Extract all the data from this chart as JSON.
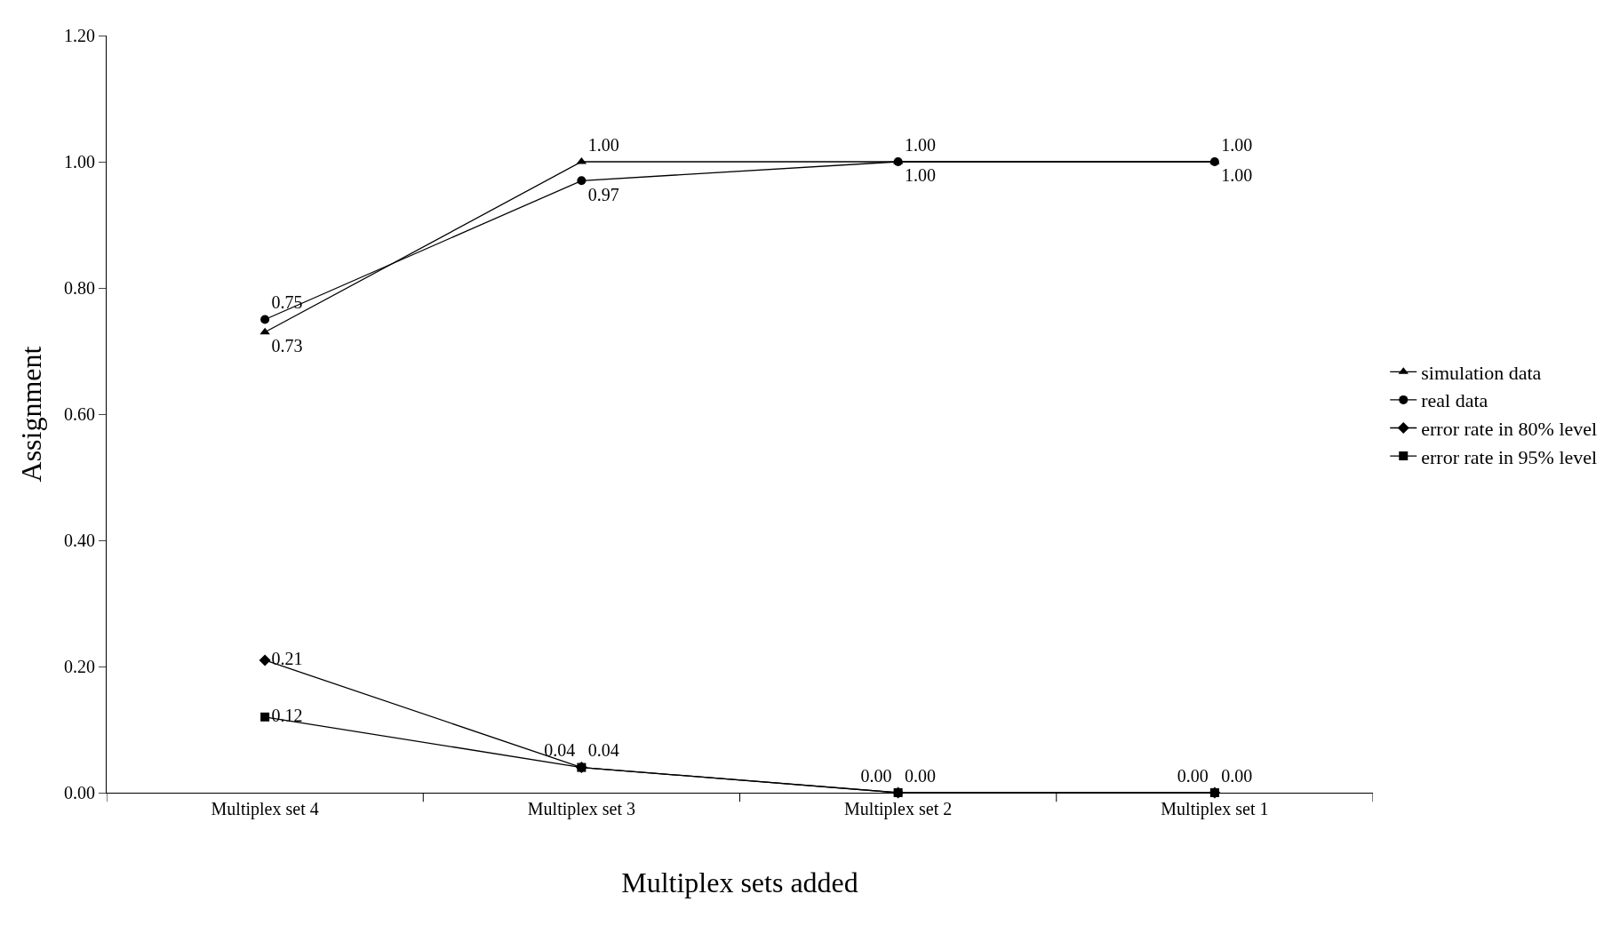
{
  "chart_data": {
    "type": "line",
    "xlabel": "Multiplex sets added",
    "ylabel": "Assignment",
    "categories": [
      "Multiplex set 4",
      "Multiplex set 3",
      "Multiplex set 2",
      "Multiplex set 1"
    ],
    "ylim": [
      0,
      1.2
    ],
    "yticks": [
      {
        "value": 0,
        "label": "0.00"
      },
      {
        "value": 0.2,
        "label": "0.20"
      },
      {
        "value": 0.4,
        "label": "0.40"
      },
      {
        "value": 0.6,
        "label": "0.60"
      },
      {
        "value": 0.8,
        "label": "0.80"
      },
      {
        "value": 1.0,
        "label": "1.00"
      },
      {
        "value": 1.2,
        "label": "1.20"
      }
    ],
    "legend": "right",
    "series": [
      {
        "name": "simulation data",
        "color": "#000000",
        "marker": "triangle",
        "values": [
          0.73,
          1.0,
          1.0,
          1.0
        ],
        "value_labels": [
          "0.73",
          "1.00",
          "1.00",
          "1.00"
        ]
      },
      {
        "name": "real data",
        "color": "#000000",
        "marker": "circle",
        "values": [
          0.75,
          0.97,
          1.0,
          1.0
        ],
        "value_labels": [
          "0.75",
          "0.97",
          "1.00",
          "1.00"
        ]
      },
      {
        "name": "error rate in 80% level",
        "color": "#000000",
        "marker": "diamond",
        "values": [
          0.21,
          0.04,
          0.0,
          0.0
        ],
        "value_labels": [
          "0.21",
          "0.04",
          "0.00",
          "0.00"
        ]
      },
      {
        "name": "error rate in 95% level",
        "color": "#000000",
        "marker": "square",
        "values": [
          0.12,
          0.04,
          0.0,
          0.0
        ],
        "value_labels": [
          "0.12",
          "0.04",
          "0.00",
          "0.00"
        ]
      }
    ]
  }
}
